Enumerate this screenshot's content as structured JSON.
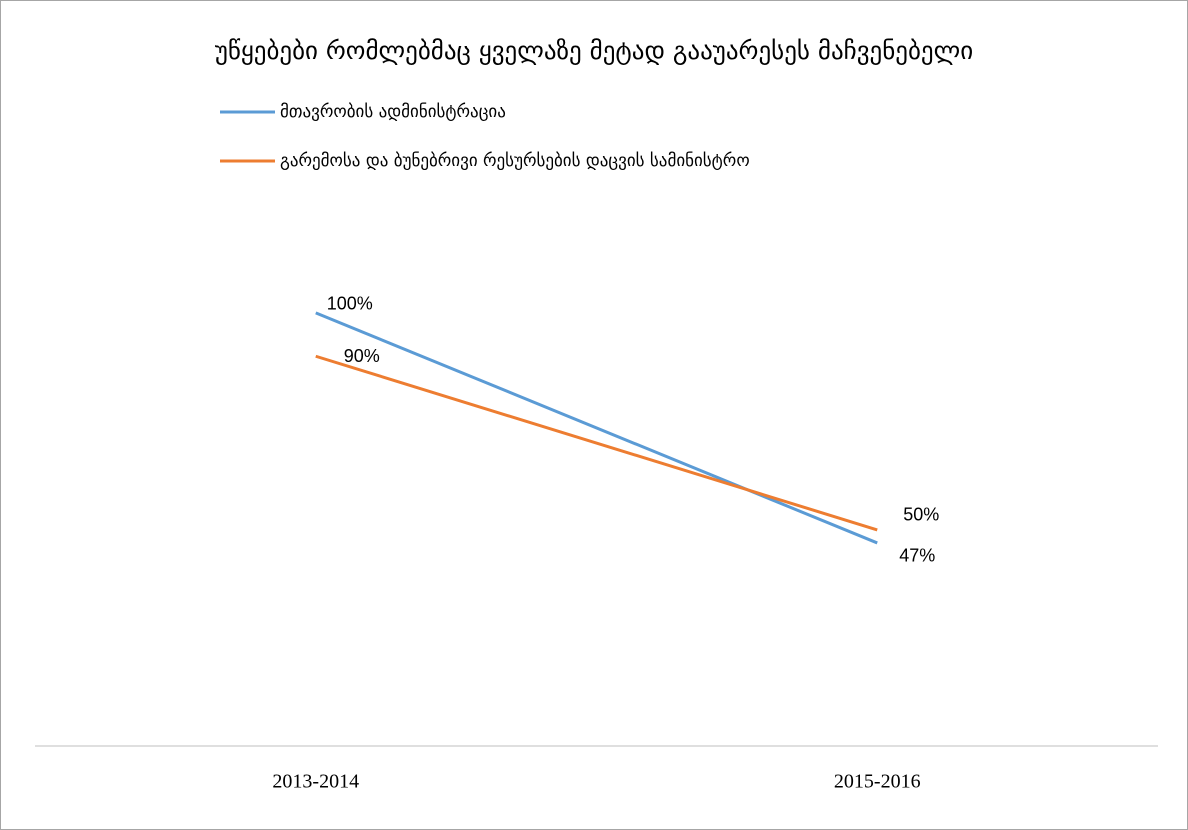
{
  "chart_data": {
    "type": "line",
    "title": "უწყებები რომლებმაც ყველაზე მეტად გააუარესეს მაჩვენებელი",
    "categories": [
      "2013-2014",
      "2015-2016"
    ],
    "series": [
      {
        "name": "მთავრობის ადმინისტრაცია",
        "color": "#5b9bd5",
        "values": [
          100,
          47
        ],
        "value_labels": [
          "100%",
          "47%"
        ]
      },
      {
        "name": "გარემოსა და ბუნებრივი რესურსების დაცვის სამინისტრო",
        "color": "#ed7d31",
        "values": [
          90,
          50
        ],
        "value_labels": [
          "90%",
          "50%"
        ]
      }
    ],
    "ylim": [
      0,
      120
    ],
    "legend": "top"
  }
}
